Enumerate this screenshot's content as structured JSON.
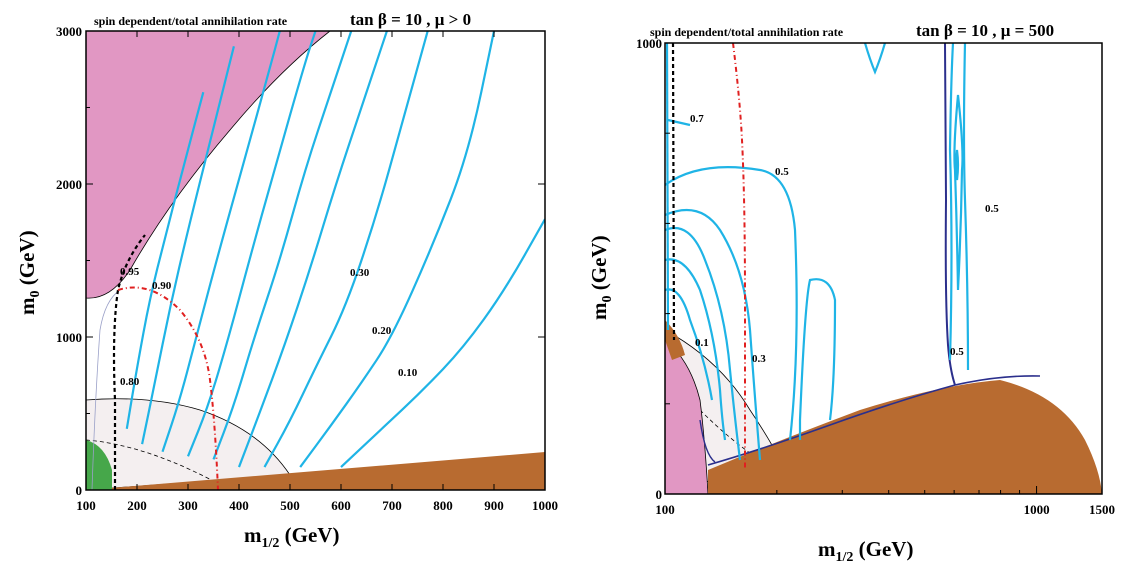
{
  "colors": {
    "contour": "#1fb4e6",
    "charged_lsp": "#e197c3",
    "stau_lsp": "#b86b30",
    "bsg_excluded": "#46a74a",
    "g2_region": "#f4eff0",
    "higgs_line": "#e02020",
    "chargino_line": "#000000",
    "dark_contour": "#2b2f8c"
  },
  "chart_data": [
    {
      "type": "contour",
      "title_small": "spin dependent/total annihilation rate",
      "title_big": "tan β = 10 ,  μ > 0",
      "xlabel_main": "m",
      "xlabel_sub": "1/2",
      "xlabel_unit": " (GeV)",
      "ylabel_main": "m",
      "ylabel_sub": "0",
      "ylabel_unit": " (GeV)",
      "xlim": [
        100,
        1000
      ],
      "ylim": [
        0,
        3000
      ],
      "xticks": [
        "100",
        "200",
        "300",
        "400",
        "500",
        "600",
        "700",
        "800",
        "900",
        "1000"
      ],
      "yticks": [
        "0",
        "1000",
        "2000",
        "3000"
      ],
      "contour_labels": [
        "0.95",
        "0.90",
        "0.80",
        "0.30",
        "0.20",
        "0.10"
      ],
      "contours": [
        {
          "label": "0.10",
          "points": [
            [
              600,
              150
            ],
            [
              680,
              400
            ],
            [
              760,
              650
            ],
            [
              840,
              930
            ],
            [
              920,
              1300
            ],
            [
              1000,
              1770
            ]
          ]
        },
        {
          "label": "0.20",
          "points": [
            [
              520,
              150
            ],
            [
              580,
              420
            ],
            [
              640,
              700
            ],
            [
              700,
              1000
            ],
            [
              780,
              1600
            ],
            [
              850,
              2200
            ],
            [
              900,
              3000
            ]
          ]
        },
        {
          "label": "0.30",
          "points": [
            [
              450,
              150
            ],
            [
              500,
              450
            ],
            [
              550,
              800
            ],
            [
              610,
              1200
            ],
            [
              670,
              1800
            ],
            [
              720,
              2400
            ],
            [
              770,
              3000
            ]
          ]
        },
        {
          "points": [
            [
              400,
              150
            ],
            [
              440,
              500
            ],
            [
              490,
              950
            ],
            [
              540,
              1450
            ],
            [
              590,
              2000
            ],
            [
              640,
              2500
            ],
            [
              690,
              3000
            ]
          ]
        },
        {
          "points": [
            [
              350,
              200
            ],
            [
              390,
              550
            ],
            [
              430,
              1000
            ],
            [
              480,
              1500
            ],
            [
              530,
              2100
            ],
            [
              580,
              2600
            ],
            [
              620,
              3000
            ]
          ]
        },
        {
          "points": [
            [
              300,
              220
            ],
            [
              340,
              550
            ],
            [
              380,
              1000
            ],
            [
              420,
              1500
            ],
            [
              470,
              2100
            ],
            [
              530,
              2800
            ],
            [
              550,
              3000
            ]
          ]
        },
        {
          "points": [
            [
              250,
              250
            ],
            [
              285,
              600
            ],
            [
              320,
              1050
            ],
            [
              360,
              1550
            ],
            [
              410,
              2150
            ],
            [
              460,
              2750
            ],
            [
              480,
              3000
            ]
          ]
        },
        {
          "points": [
            [
              210,
              300
            ],
            [
              235,
              700
            ],
            [
              265,
              1200
            ],
            [
              300,
              1700
            ],
            [
              345,
              2300
            ],
            [
              390,
              2900
            ]
          ]
        },
        {
          "points": [
            [
              180,
              400
            ],
            [
              200,
              800
            ],
            [
              225,
              1250
            ],
            [
              255,
              1650
            ],
            [
              290,
              2100
            ],
            [
              330,
              2600
            ]
          ]
        }
      ]
    },
    {
      "type": "contour",
      "title_small": "spin dependent/total annihilation rate",
      "title_big": "tan β = 10 , μ = 500",
      "xlabel_main": "m",
      "xlabel_sub": "1/2",
      "xlabel_unit": " (GeV)",
      "ylabel_main": "m",
      "ylabel_sub": "0",
      "ylabel_unit": " (GeV)",
      "xscale": "log",
      "xlim": [
        100,
        1500
      ],
      "ylim": [
        0,
        1000
      ],
      "xticks": [
        "100",
        "1000",
        "1500"
      ],
      "yticks": [
        "0",
        "1000"
      ],
      "contour_labels": [
        "0.7",
        "0.5",
        "0.5",
        "0.1",
        "0.3",
        "0.5"
      ]
    }
  ]
}
